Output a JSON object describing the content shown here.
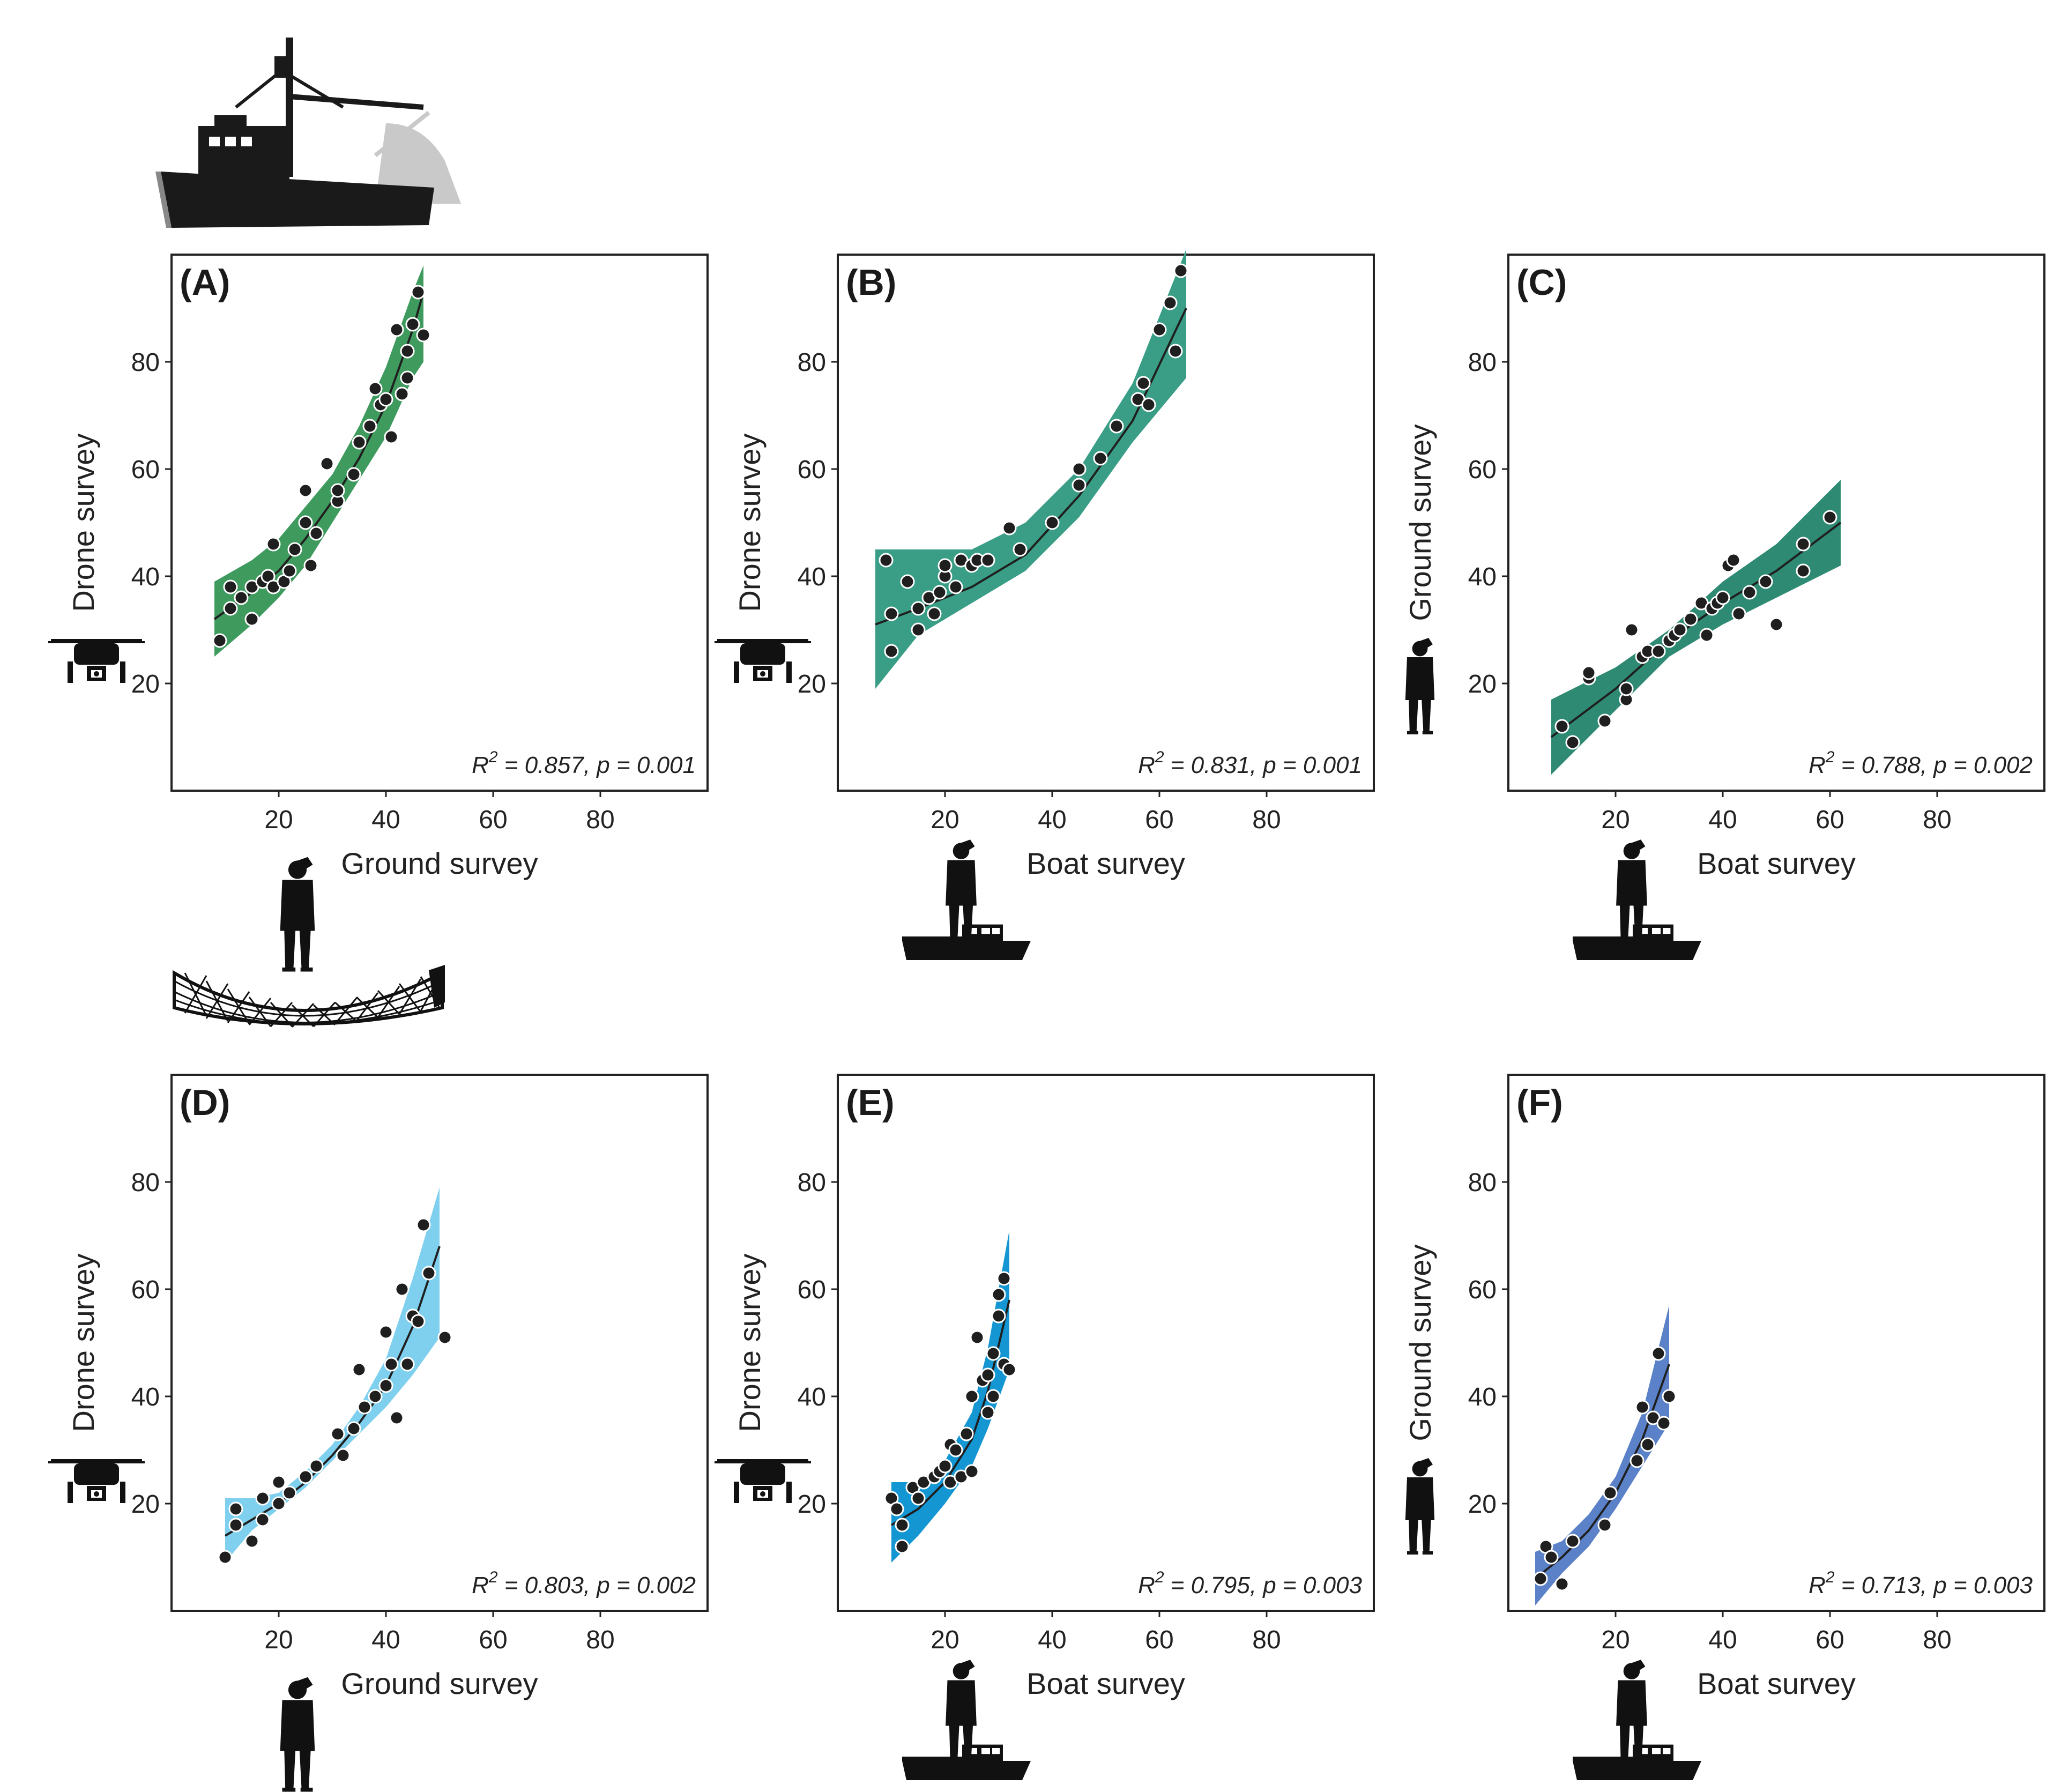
{
  "figure": {
    "colors": {
      "A": "#3f9a5e",
      "B": "#3a9e86",
      "C": "#2e8a73",
      "D": "#7fd0ee",
      "E": "#1496d2",
      "F": "#5b82c8",
      "point": "#1f1f1f",
      "fit": "#1f1f1f"
    },
    "icons": {
      "trawler": "fishing-trawler-icon",
      "net": "fishing-net-icon",
      "drone": "drone-icon",
      "observer": "observer-person-icon",
      "boat": "survey-boat-icon"
    }
  },
  "chart_data": [
    {
      "panel": "A",
      "type": "scatter",
      "label": "(A)",
      "color_key": "A",
      "xlabel": "Ground survey",
      "ylabel": "Drone survey",
      "x_icon": "observer",
      "y_icon": "drone",
      "xlim": [
        0,
        100
      ],
      "ylim": [
        0,
        100
      ],
      "xticks": [
        20,
        40,
        60,
        80
      ],
      "yticks": [
        20,
        40,
        60,
        80
      ],
      "stats": {
        "r2": "0.857",
        "p": "0.001"
      },
      "fit": {
        "x": [
          8,
          15,
          20,
          25,
          30,
          35,
          40,
          45,
          47
        ],
        "y": [
          32,
          37,
          41,
          47,
          54,
          62,
          72,
          86,
          93
        ]
      },
      "ci_lower": [
        25,
        31,
        36,
        42,
        50,
        58,
        66,
        77,
        80
      ],
      "ci_upper": [
        39,
        43,
        47,
        53,
        59,
        68,
        79,
        93,
        98
      ],
      "points": {
        "x": [
          9,
          11,
          11,
          13,
          15,
          15,
          17,
          18,
          19,
          19,
          21,
          22,
          23,
          25,
          25,
          26,
          27,
          29,
          31,
          31,
          34,
          35,
          37,
          38,
          39,
          40,
          41,
          42,
          43,
          44,
          44,
          45,
          46,
          47
        ],
        "y": [
          28,
          34,
          38,
          36,
          32,
          38,
          39,
          40,
          38,
          46,
          39,
          41,
          45,
          50,
          56,
          42,
          48,
          61,
          54,
          56,
          59,
          65,
          68,
          75,
          72,
          73,
          66,
          86,
          74,
          77,
          82,
          87,
          93,
          85
        ]
      }
    },
    {
      "panel": "B",
      "type": "scatter",
      "label": "(B)",
      "color_key": "B",
      "xlabel": "Boat survey",
      "ylabel": "Drone survey",
      "x_icon": "observer-boat",
      "y_icon": "drone",
      "xlim": [
        0,
        100
      ],
      "ylim": [
        0,
        100
      ],
      "xticks": [
        20,
        40,
        60,
        80
      ],
      "yticks": [
        20,
        40,
        60,
        80
      ],
      "stats": {
        "r2": "0.831",
        "p": "0.001"
      },
      "fit": {
        "x": [
          7,
          15,
          25,
          35,
          45,
          55,
          65
        ],
        "y": [
          31,
          34,
          38,
          44,
          55,
          69,
          90
        ]
      },
      "ci_lower": [
        19,
        29,
        35,
        41,
        51,
        65,
        77
      ],
      "ci_upper": [
        45,
        45,
        45,
        50,
        60,
        76,
        101
      ],
      "points": {
        "x": [
          9,
          10,
          10,
          13,
          15,
          15,
          17,
          18,
          19,
          20,
          20,
          22,
          23,
          25,
          26,
          28,
          32,
          34,
          40,
          45,
          45,
          49,
          52,
          56,
          57,
          58,
          60,
          62,
          63,
          64
        ],
        "y": [
          43,
          26,
          33,
          39,
          34,
          30,
          36,
          33,
          37,
          40,
          42,
          38,
          43,
          42,
          43,
          43,
          49,
          45,
          50,
          57,
          60,
          62,
          68,
          73,
          76,
          72,
          86,
          91,
          82,
          97
        ]
      }
    },
    {
      "panel": "C",
      "type": "scatter",
      "label": "(C)",
      "color_key": "C",
      "xlabel": "Boat survey",
      "ylabel": "Ground survey",
      "x_icon": "observer-boat",
      "y_icon": "observer",
      "xlim": [
        0,
        100
      ],
      "ylim": [
        0,
        100
      ],
      "xticks": [
        20,
        40,
        60,
        80
      ],
      "yticks": [
        20,
        40,
        60,
        80
      ],
      "stats": {
        "r2": "0.788",
        "p": "0.002"
      },
      "fit": {
        "x": [
          8,
          20,
          30,
          40,
          50,
          62
        ],
        "y": [
          10,
          19,
          28,
          35,
          41,
          50
        ]
      },
      "ci_lower": [
        3,
        15,
        25,
        31,
        36,
        42
      ],
      "ci_upper": [
        17,
        23,
        30,
        39,
        46,
        58
      ],
      "points": {
        "x": [
          10,
          12,
          15,
          15,
          18,
          22,
          22,
          23,
          25,
          26,
          28,
          30,
          31,
          32,
          34,
          36,
          37,
          38,
          39,
          40,
          41,
          42,
          43,
          45,
          48,
          50,
          55,
          55,
          60
        ],
        "y": [
          12,
          9,
          21,
          22,
          13,
          17,
          19,
          30,
          25,
          26,
          26,
          28,
          29,
          30,
          32,
          35,
          29,
          34,
          35,
          36,
          42,
          43,
          33,
          37,
          39,
          31,
          41,
          46,
          51
        ]
      }
    },
    {
      "panel": "D",
      "type": "scatter",
      "label": "(D)",
      "color_key": "D",
      "xlabel": "Ground survey",
      "ylabel": "Drone survey",
      "x_icon": "observer",
      "y_icon": "drone",
      "xlim": [
        0,
        100
      ],
      "ylim": [
        0,
        100
      ],
      "xticks": [
        20,
        40,
        60,
        80
      ],
      "yticks": [
        20,
        40,
        60,
        80
      ],
      "stats": {
        "r2": "0.803",
        "p": "0.002"
      },
      "fit": {
        "x": [
          10,
          15,
          20,
          25,
          30,
          35,
          40,
          45,
          50
        ],
        "y": [
          14,
          17,
          20,
          24,
          29,
          35,
          42,
          53,
          68
        ]
      },
      "ci_lower": [
        9,
        15,
        19,
        23,
        28,
        33,
        38,
        44,
        51
      ],
      "ci_upper": [
        21,
        21,
        22,
        26,
        31,
        38,
        47,
        62,
        79
      ],
      "points": {
        "x": [
          10,
          12,
          12,
          15,
          17,
          17,
          20,
          20,
          22,
          25,
          27,
          31,
          32,
          34,
          35,
          36,
          38,
          40,
          40,
          41,
          42,
          43,
          44,
          45,
          46,
          47,
          48,
          51
        ],
        "y": [
          10,
          16,
          19,
          13,
          17,
          21,
          20,
          24,
          22,
          25,
          27,
          33,
          29,
          34,
          45,
          38,
          40,
          42,
          52,
          46,
          36,
          60,
          46,
          55,
          54,
          72,
          63,
          51
        ]
      }
    },
    {
      "panel": "E",
      "type": "scatter",
      "label": "(E)",
      "color_key": "E",
      "xlabel": "Boat survey",
      "ylabel": "Drone survey",
      "x_icon": "observer-boat",
      "y_icon": "drone",
      "xlim": [
        0,
        100
      ],
      "ylim": [
        0,
        100
      ],
      "xticks": [
        20,
        40,
        60,
        80
      ],
      "yticks": [
        20,
        40,
        60,
        80
      ],
      "stats": {
        "r2": "0.795",
        "p": "0.003"
      },
      "fit": {
        "x": [
          10,
          15,
          20,
          25,
          28,
          32
        ],
        "y": [
          16,
          19,
          24,
          32,
          41,
          58
        ]
      },
      "ci_lower": [
        9,
        14,
        20,
        27,
        34,
        45
      ],
      "ci_upper": [
        24,
        24,
        28,
        37,
        49,
        71
      ],
      "points": {
        "x": [
          10,
          11,
          12,
          12,
          14,
          15,
          16,
          18,
          19,
          20,
          21,
          21,
          22,
          23,
          24,
          25,
          25,
          26,
          27,
          28,
          28,
          29,
          29,
          30,
          30,
          31,
          31,
          32
        ],
        "y": [
          21,
          19,
          12,
          16,
          23,
          21,
          24,
          25,
          26,
          27,
          24,
          31,
          30,
          25,
          33,
          26,
          40,
          51,
          43,
          37,
          44,
          40,
          48,
          59,
          55,
          46,
          62,
          45
        ]
      }
    },
    {
      "panel": "F",
      "type": "scatter",
      "label": "(F)",
      "color_key": "F",
      "xlabel": "Boat survey",
      "ylabel": "Ground survey",
      "x_icon": "observer-boat",
      "y_icon": "observer",
      "xlim": [
        0,
        100
      ],
      "ylim": [
        0,
        100
      ],
      "xticks": [
        20,
        40,
        60,
        80
      ],
      "yticks": [
        20,
        40,
        60,
        80
      ],
      "stats": {
        "r2": "0.713",
        "p": "0.003"
      },
      "fit": {
        "x": [
          5,
          10,
          15,
          20,
          25,
          30
        ],
        "y": [
          6,
          10,
          15,
          22,
          32,
          46
        ]
      },
      "ci_lower": [
        1,
        7,
        12,
        19,
        27,
        35
      ],
      "ci_upper": [
        11,
        13,
        18,
        25,
        37,
        57
      ],
      "points": {
        "x": [
          6,
          7,
          8,
          10,
          12,
          18,
          19,
          24,
          25,
          26,
          27,
          28,
          29,
          30
        ],
        "y": [
          6,
          12,
          10,
          5,
          13,
          16,
          22,
          28,
          38,
          31,
          36,
          48,
          35,
          40
        ]
      }
    }
  ]
}
